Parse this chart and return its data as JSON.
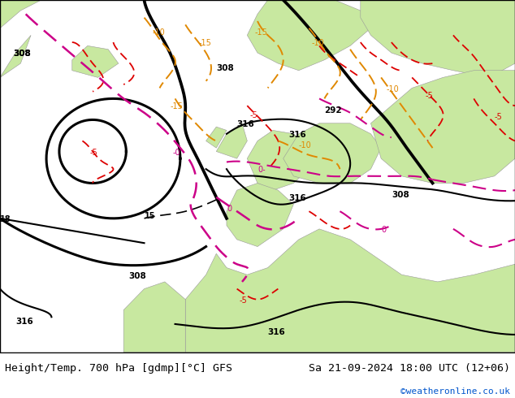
{
  "title_left": "Height/Temp. 700 hPa [gdmp][°C] GFS",
  "title_right": "Sa 21-09-2024 18:00 UTC (12+06)",
  "credit": "©weatheronline.co.uk",
  "ocean_color": "#d8d8d8",
  "land_color": "#c8e8a0",
  "bottom_bar_color": "#d8d8d8",
  "title_fontsize": 9.5,
  "credit_color": "#0055cc",
  "fig_width": 6.34,
  "fig_height": 4.9,
  "dpi": 100
}
